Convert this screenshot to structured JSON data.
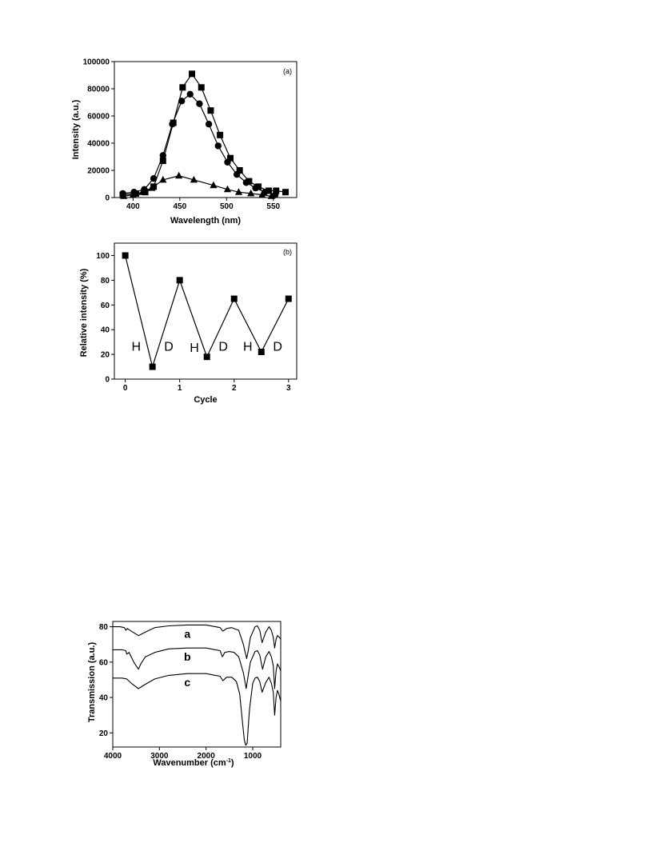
{
  "chart_data": [
    {
      "type": "line",
      "panel_label": "(a)",
      "xlabel": "Wavelength (nm)",
      "ylabel": "Intensity (a.u.)",
      "xlim": [
        380,
        575
      ],
      "ylim": [
        0,
        100000
      ],
      "xticks": [
        "400",
        "450",
        "500",
        "550"
      ],
      "yticks": [
        "0",
        "20000",
        "40000",
        "60000",
        "80000",
        "100000"
      ],
      "series": [
        {
          "marker": "square",
          "x": [
            389,
            403,
            413,
            422,
            432,
            443,
            453,
            463,
            473,
            483,
            493,
            504,
            514,
            524,
            534,
            545,
            553,
            563
          ],
          "y": [
            2000,
            3000,
            4000,
            8000,
            27000,
            55000,
            81000,
            91000,
            81000,
            64000,
            46000,
            29000,
            20000,
            12000,
            8000,
            5000,
            5000,
            4000
          ]
        },
        {
          "marker": "circle",
          "x": [
            389,
            401,
            412,
            422,
            432,
            442,
            452,
            461,
            471,
            481,
            491,
            501,
            511,
            521,
            531,
            541,
            552
          ],
          "y": [
            3000,
            4000,
            6000,
            14000,
            31000,
            54000,
            71000,
            76000,
            69000,
            54000,
            38000,
            26000,
            17000,
            11000,
            7000,
            4000,
            2000
          ]
        },
        {
          "marker": "triangle",
          "x": [
            390,
            400,
            410,
            420,
            432,
            449,
            465,
            486,
            501,
            513,
            526,
            538,
            548
          ],
          "y": [
            1000,
            2000,
            4000,
            7000,
            13000,
            16000,
            13000,
            9000,
            6000,
            4000,
            3000,
            2000,
            1000
          ]
        }
      ]
    },
    {
      "type": "line",
      "panel_label": "(b)",
      "xlabel": "Cycle",
      "ylabel": "Relative intensity (%)",
      "xlim": [
        -0.2,
        3.15
      ],
      "ylim": [
        0,
        110
      ],
      "xticks": [
        "0",
        "1",
        "2",
        "3"
      ],
      "yticks": [
        "0",
        "20",
        "40",
        "60",
        "80",
        "100"
      ],
      "x": [
        0,
        0.5,
        1,
        1.5,
        2,
        2.5,
        3
      ],
      "y": [
        100,
        10,
        80,
        18,
        65,
        22,
        65
      ],
      "annotations": [
        {
          "text": "H",
          "x": 0.2,
          "y": 27
        },
        {
          "text": "D",
          "x": 0.8,
          "y": 27
        },
        {
          "text": "H",
          "x": 1.27,
          "y": 26
        },
        {
          "text": "D",
          "x": 1.8,
          "y": 27
        },
        {
          "text": "H",
          "x": 2.25,
          "y": 27
        },
        {
          "text": "D",
          "x": 2.8,
          "y": 27
        }
      ]
    },
    {
      "type": "line",
      "xlabel": "Wavenumber (cm",
      "xlabel_sup": "-1",
      "xlabel_tail": ")",
      "ylabel": "Transmission (a.u.)",
      "xlim": [
        4000,
        400
      ],
      "ylim": [
        12,
        83
      ],
      "xticks": [
        "4000",
        "3000",
        "2000",
        "1000"
      ],
      "yticks": [
        "20",
        "40",
        "60",
        "80"
      ],
      "series": [
        {
          "name": "a",
          "x": [
            4000,
            3850,
            3750,
            3720,
            3690,
            3600,
            3450,
            3300,
            3100,
            2800,
            2400,
            2000,
            1800,
            1700,
            1640,
            1560,
            1450,
            1300,
            1200,
            1130,
            1100,
            1050,
            950,
            900,
            850,
            800,
            720,
            650,
            600,
            560,
            530,
            500,
            470,
            430,
            400
          ],
          "y": [
            80,
            80,
            79.5,
            78,
            79,
            77.5,
            75,
            77,
            79.5,
            80.5,
            81,
            81,
            80,
            79.5,
            77.5,
            79,
            79.5,
            78,
            70,
            62,
            66,
            74,
            80,
            80.5,
            78,
            71,
            77,
            80,
            78,
            74,
            68,
            73,
            75,
            74,
            73
          ]
        },
        {
          "name": "b",
          "x": [
            4000,
            3800,
            3720,
            3700,
            3650,
            3550,
            3450,
            3400,
            3300,
            3100,
            2800,
            2400,
            2000,
            1800,
            1700,
            1650,
            1600,
            1500,
            1400,
            1300,
            1200,
            1140,
            1100,
            1050,
            950,
            900,
            850,
            790,
            720,
            650,
            600,
            560,
            530,
            500,
            470,
            430,
            400
          ],
          "y": [
            67,
            67,
            66.5,
            64.5,
            65.5,
            60,
            56,
            59,
            63,
            65.5,
            67.5,
            68,
            68,
            67,
            66.5,
            63,
            65.5,
            66,
            65.5,
            63,
            54,
            45,
            52,
            60,
            66,
            66.5,
            64,
            56,
            63,
            66,
            63,
            58,
            45,
            55,
            59,
            57,
            55
          ]
        },
        {
          "name": "c",
          "x": [
            4000,
            3800,
            3700,
            3600,
            3450,
            3300,
            3100,
            2800,
            2400,
            2000,
            1800,
            1700,
            1640,
            1560,
            1450,
            1350,
            1280,
            1220,
            1180,
            1150,
            1120,
            1100,
            1070,
            1000,
            950,
            900,
            850,
            800,
            720,
            650,
            600,
            560,
            530,
            500,
            470,
            440,
            420,
            400
          ],
          "y": [
            51,
            51,
            50.5,
            48,
            45,
            47.5,
            50.5,
            52.5,
            53.5,
            53.5,
            52.5,
            52,
            49.5,
            51.5,
            51.5,
            49,
            42,
            26,
            16,
            13,
            14,
            22,
            33,
            48,
            51,
            51.5,
            49,
            43,
            48.5,
            51.5,
            48,
            43,
            30,
            40,
            44,
            42,
            40,
            38
          ]
        }
      ]
    }
  ]
}
